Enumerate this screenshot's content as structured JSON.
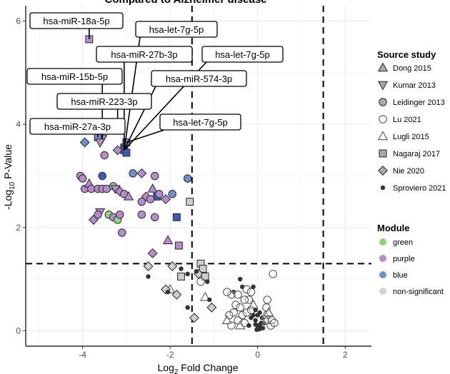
{
  "chart_data": {
    "type": "scatter",
    "title": "Compared to Alzheimer disease",
    "xlabel": "Log2 Fold Change",
    "xlabel_main": "Log",
    "xlabel_sub": "2",
    "xlabel_rest": " Fold Change",
    "ylabel": "-Log10 P-Value",
    "ylabel_main": "-Log",
    "ylabel_sub": "10",
    "ylabel_rest": " P-Value",
    "xlim": [
      -5.3,
      2.6
    ],
    "ylim": [
      -0.3,
      6.3
    ],
    "xticks": [
      -4,
      -2,
      0,
      2
    ],
    "yticks": [
      0,
      2,
      4,
      6
    ],
    "grid": true,
    "thresholds": {
      "x": [
        -1.5,
        1.5
      ],
      "y": [
        1.3
      ]
    },
    "legend_position": "right",
    "legend_shape": {
      "title": "Source study",
      "items": [
        {
          "label": "Dong 2015",
          "shape": "triangle-up"
        },
        {
          "label": "Kumar 2013",
          "shape": "triangle-down"
        },
        {
          "label": "Leidinger 2013",
          "shape": "circle"
        },
        {
          "label": "Lu 2021",
          "shape": "circle-open"
        },
        {
          "label": "Lugli 2015",
          "shape": "triangle-open"
        },
        {
          "label": "Nagaraj 2017",
          "shape": "square"
        },
        {
          "label": "Nie 2020",
          "shape": "diamond"
        },
        {
          "label": "Sproviero 2021",
          "shape": "dot"
        }
      ]
    },
    "legend_color": {
      "title": "Module",
      "items": [
        {
          "label": "green",
          "color": "#90d57c"
        },
        {
          "label": "purple",
          "color": "#b68ccc"
        },
        {
          "label": "blue",
          "color": "#6f8fd0"
        },
        {
          "label": "non-significant",
          "color": "#d3d3d3"
        }
      ]
    },
    "colors": {
      "green": "#90d57c",
      "purple": "#b68ccc",
      "blue": "#6f8fd0",
      "blue_dark": "#3a5bb8",
      "nonsig": "#cfcfcf",
      "dot": "#333333"
    },
    "annotations": [
      {
        "text": "hsa-miR-18a-5p",
        "x": -3.85,
        "y": 5.65
      },
      {
        "text": "hsa-let-7g-5p",
        "x": -3.05,
        "y": 3.5
      },
      {
        "text": "hsa-miR-27b-3p",
        "x": -3.05,
        "y": 3.5
      },
      {
        "text": "hsa-let-7g-5p",
        "x": -3.05,
        "y": 3.5
      },
      {
        "text": "hsa-miR-15b-5p",
        "x": -3.55,
        "y": 3.72
      },
      {
        "text": "hsa-miR-574-3p",
        "x": -3.05,
        "y": 3.5
      },
      {
        "text": "hsa-miR-223-3p",
        "x": -3.2,
        "y": 4.0
      },
      {
        "text": "hsa-let-7g-5p",
        "x": -3.0,
        "y": 3.65
      },
      {
        "text": "hsa-miR-27a-3p",
        "x": -3.65,
        "y": 3.75
      }
    ],
    "points": [
      {
        "x": -3.85,
        "y": 5.65,
        "shape": "square",
        "color": "purple"
      },
      {
        "x": -3.55,
        "y": 3.72,
        "shape": "triangle-down",
        "color": "purple"
      },
      {
        "x": -3.65,
        "y": 3.75,
        "shape": "square",
        "color": "blue"
      },
      {
        "x": -3.95,
        "y": 3.65,
        "shape": "diamond",
        "color": "blue"
      },
      {
        "x": -3.6,
        "y": 3.65,
        "shape": "triangle-down",
        "color": "purple"
      },
      {
        "x": -3.2,
        "y": 4.0,
        "shape": "diamond",
        "color": "purple"
      },
      {
        "x": -3.05,
        "y": 3.55,
        "shape": "square",
        "color": "blue_dark"
      },
      {
        "x": -3.05,
        "y": 3.5,
        "shape": "square",
        "color": "blue_dark"
      },
      {
        "x": -3.0,
        "y": 3.45,
        "shape": "square",
        "color": "blue_dark"
      },
      {
        "x": -3.0,
        "y": 3.65,
        "shape": "square",
        "color": "blue"
      },
      {
        "x": -3.5,
        "y": 3.4,
        "shape": "circle",
        "color": "purple"
      },
      {
        "x": -3.2,
        "y": 3.5,
        "shape": "diamond",
        "color": "purple"
      },
      {
        "x": -4.05,
        "y": 3.0,
        "shape": "circle",
        "color": "purple"
      },
      {
        "x": -4.0,
        "y": 2.95,
        "shape": "circle",
        "color": "purple"
      },
      {
        "x": -3.95,
        "y": 2.75,
        "shape": "circle",
        "color": "purple"
      },
      {
        "x": -3.85,
        "y": 2.85,
        "shape": "triangle-up",
        "color": "purple"
      },
      {
        "x": -3.8,
        "y": 2.75,
        "shape": "circle",
        "color": "purple"
      },
      {
        "x": -3.65,
        "y": 2.75,
        "shape": "circle",
        "color": "purple"
      },
      {
        "x": -3.55,
        "y": 3.0,
        "shape": "circle",
        "color": "blue_dark"
      },
      {
        "x": -3.55,
        "y": 2.75,
        "shape": "circle",
        "color": "purple"
      },
      {
        "x": -3.45,
        "y": 2.75,
        "shape": "circle",
        "color": "purple"
      },
      {
        "x": -3.3,
        "y": 2.8,
        "shape": "circle",
        "color": "green"
      },
      {
        "x": -3.25,
        "y": 2.75,
        "shape": "triangle-down",
        "color": "purple"
      },
      {
        "x": -3.15,
        "y": 2.7,
        "shape": "diamond",
        "color": "purple"
      },
      {
        "x": -3.05,
        "y": 2.65,
        "shape": "circle",
        "color": "purple"
      },
      {
        "x": -2.95,
        "y": 2.6,
        "shape": "triangle-up",
        "color": "purple"
      },
      {
        "x": -2.85,
        "y": 3.05,
        "shape": "circle",
        "color": "blue"
      },
      {
        "x": -2.65,
        "y": 3.05,
        "shape": "diamond",
        "color": "purple"
      },
      {
        "x": -2.55,
        "y": 2.6,
        "shape": "diamond",
        "color": "purple"
      },
      {
        "x": -2.4,
        "y": 2.75,
        "shape": "triangle-up",
        "color": "purple"
      },
      {
        "x": -2.35,
        "y": 3.0,
        "shape": "circle",
        "color": "purple"
      },
      {
        "x": -2.3,
        "y": 2.6,
        "shape": "square",
        "color": "blue_dark"
      },
      {
        "x": -2.45,
        "y": 2.55,
        "shape": "circle",
        "color": "purple"
      },
      {
        "x": -2.25,
        "y": 2.65,
        "shape": "circle",
        "color": "purple"
      },
      {
        "x": -2.65,
        "y": 2.5,
        "shape": "circle",
        "color": "purple"
      },
      {
        "x": -2.1,
        "y": 2.55,
        "shape": "diamond",
        "color": "purple"
      },
      {
        "x": -1.95,
        "y": 2.65,
        "shape": "circle",
        "color": "blue"
      },
      {
        "x": -1.6,
        "y": 2.95,
        "shape": "circle",
        "color": "blue"
      },
      {
        "x": -3.6,
        "y": 2.3,
        "shape": "triangle-down",
        "color": "purple"
      },
      {
        "x": -3.65,
        "y": 2.25,
        "shape": "circle",
        "color": "purple"
      },
      {
        "x": -3.75,
        "y": 2.15,
        "shape": "diamond",
        "color": "purple"
      },
      {
        "x": -3.4,
        "y": 2.25,
        "shape": "circle",
        "color": "green"
      },
      {
        "x": -3.3,
        "y": 2.2,
        "shape": "circle",
        "color": "purple"
      },
      {
        "x": -3.2,
        "y": 2.15,
        "shape": "circle",
        "color": "green"
      },
      {
        "x": -3.15,
        "y": 2.25,
        "shape": "circle",
        "color": "purple"
      },
      {
        "x": -3.1,
        "y": 1.9,
        "shape": "circle",
        "color": "purple"
      },
      {
        "x": -2.65,
        "y": 2.25,
        "shape": "circle",
        "color": "purple"
      },
      {
        "x": -2.35,
        "y": 2.2,
        "shape": "circle",
        "color": "purple"
      },
      {
        "x": -1.85,
        "y": 2.2,
        "shape": "square",
        "color": "blue_dark"
      },
      {
        "x": -1.55,
        "y": 2.5,
        "shape": "square",
        "color": "nonsig"
      },
      {
        "x": -2.05,
        "y": 1.75,
        "shape": "triangle-up",
        "color": "purple"
      },
      {
        "x": -2.4,
        "y": 1.5,
        "shape": "diamond",
        "color": "purple"
      },
      {
        "x": -1.8,
        "y": 1.65,
        "shape": "square",
        "color": "purple"
      },
      {
        "x": -2.5,
        "y": 1.25,
        "shape": "diamond",
        "color": "nonsig"
      },
      {
        "x": -2.5,
        "y": 1.05,
        "shape": "dot",
        "color": "dot"
      },
      {
        "x": -1.95,
        "y": 1.25,
        "shape": "diamond",
        "color": "nonsig"
      },
      {
        "x": -1.75,
        "y": 1.2,
        "shape": "dot",
        "color": "dot"
      },
      {
        "x": -1.6,
        "y": 1.1,
        "shape": "dot",
        "color": "dot"
      },
      {
        "x": -1.3,
        "y": 1.3,
        "shape": "square",
        "color": "nonsig"
      },
      {
        "x": -1.25,
        "y": 1.2,
        "shape": "square",
        "color": "nonsig"
      },
      {
        "x": -1.35,
        "y": 1.1,
        "shape": "diamond",
        "color": "nonsig"
      },
      {
        "x": -1.2,
        "y": 1.05,
        "shape": "square",
        "color": "nonsig"
      },
      {
        "x": -1.4,
        "y": 1.15,
        "shape": "dot",
        "color": "dot"
      },
      {
        "x": -1.75,
        "y": 1.05,
        "shape": "square",
        "color": "nonsig"
      },
      {
        "x": -1.3,
        "y": 0.95,
        "shape": "circle-open",
        "color": "nonsig"
      },
      {
        "x": -1.15,
        "y": 0.95,
        "shape": "dot",
        "color": "dot"
      },
      {
        "x": -2.0,
        "y": 0.8,
        "shape": "triangle-open",
        "color": "nonsig"
      },
      {
        "x": -2.1,
        "y": 0.8,
        "shape": "diamond",
        "color": "nonsig"
      },
      {
        "x": -2.05,
        "y": 0.75,
        "shape": "dot",
        "color": "dot"
      },
      {
        "x": -1.85,
        "y": 0.7,
        "shape": "diamond",
        "color": "nonsig"
      },
      {
        "x": -1.6,
        "y": 0.45,
        "shape": "dot",
        "color": "dot"
      },
      {
        "x": -1.2,
        "y": 0.65,
        "shape": "triangle-open",
        "color": "nonsig"
      },
      {
        "x": -1.1,
        "y": 0.6,
        "shape": "dot",
        "color": "dot"
      },
      {
        "x": -1.05,
        "y": 0.45,
        "shape": "diamond",
        "color": "nonsig"
      },
      {
        "x": -1.45,
        "y": 0.25,
        "shape": "diamond",
        "color": "nonsig"
      },
      {
        "x": -0.55,
        "y": 0.75,
        "shape": "dot",
        "color": "dot"
      },
      {
        "x": -0.4,
        "y": 1.0,
        "shape": "dot",
        "color": "dot"
      },
      {
        "x": -0.35,
        "y": 0.85,
        "shape": "dot",
        "color": "dot"
      },
      {
        "x": -0.25,
        "y": 0.8,
        "shape": "circle-open",
        "color": "nonsig"
      },
      {
        "x": -0.15,
        "y": 0.75,
        "shape": "circle-open",
        "color": "nonsig"
      },
      {
        "x": -0.2,
        "y": 0.6,
        "shape": "circle-open",
        "color": "nonsig"
      },
      {
        "x": -0.3,
        "y": 0.6,
        "shape": "circle-open",
        "color": "nonsig"
      },
      {
        "x": -0.1,
        "y": 0.85,
        "shape": "dot",
        "color": "dot"
      },
      {
        "x": -0.6,
        "y": 0.7,
        "shape": "circle-open",
        "color": "nonsig"
      },
      {
        "x": -0.7,
        "y": 0.75,
        "shape": "circle-open",
        "color": "nonsig"
      },
      {
        "x": -0.45,
        "y": 0.7,
        "shape": "circle-open",
        "color": "nonsig"
      },
      {
        "x": -0.5,
        "y": 0.5,
        "shape": "circle-open",
        "color": "nonsig"
      },
      {
        "x": -0.4,
        "y": 0.45,
        "shape": "circle-open",
        "color": "nonsig"
      },
      {
        "x": -0.55,
        "y": 0.35,
        "shape": "circle-open",
        "color": "nonsig"
      },
      {
        "x": -0.65,
        "y": 0.3,
        "shape": "circle-open",
        "color": "nonsig"
      },
      {
        "x": -0.35,
        "y": 0.3,
        "shape": "circle-open",
        "color": "nonsig"
      },
      {
        "x": -0.25,
        "y": 0.35,
        "shape": "circle-open",
        "color": "nonsig"
      },
      {
        "x": -0.15,
        "y": 0.4,
        "shape": "circle-open",
        "color": "nonsig"
      },
      {
        "x": -0.7,
        "y": 0.2,
        "shape": "triangle-open",
        "color": "nonsig"
      },
      {
        "x": -0.45,
        "y": 0.2,
        "shape": "circle-open",
        "color": "nonsig"
      },
      {
        "x": -0.3,
        "y": 0.15,
        "shape": "circle-open",
        "color": "nonsig"
      },
      {
        "x": -0.6,
        "y": 0.1,
        "shape": "circle-open",
        "color": "nonsig"
      },
      {
        "x": -0.4,
        "y": 0.1,
        "shape": "triangle-open",
        "color": "nonsig"
      },
      {
        "x": -0.2,
        "y": 0.1,
        "shape": "dot",
        "color": "dot"
      },
      {
        "x": -0.15,
        "y": 0.25,
        "shape": "dot",
        "color": "dot"
      },
      {
        "x": -0.1,
        "y": 0.3,
        "shape": "dot",
        "color": "dot"
      },
      {
        "x": -0.05,
        "y": 0.2,
        "shape": "dot",
        "color": "dot"
      },
      {
        "x": -0.05,
        "y": 0.12,
        "shape": "dot",
        "color": "dot"
      },
      {
        "x": 0.0,
        "y": 0.05,
        "shape": "dot",
        "color": "dot"
      },
      {
        "x": 0.02,
        "y": 0.1,
        "shape": "dot",
        "color": "dot"
      },
      {
        "x": 0.04,
        "y": 0.03,
        "shape": "dot",
        "color": "dot"
      },
      {
        "x": -0.02,
        "y": 0.02,
        "shape": "dot",
        "color": "dot"
      },
      {
        "x": 0.06,
        "y": 0.08,
        "shape": "dot",
        "color": "dot"
      },
      {
        "x": 0.08,
        "y": 0.15,
        "shape": "dot",
        "color": "dot"
      },
      {
        "x": 0.1,
        "y": 0.25,
        "shape": "dot",
        "color": "dot"
      },
      {
        "x": 0.12,
        "y": 0.05,
        "shape": "dot",
        "color": "dot"
      },
      {
        "x": 0.15,
        "y": 0.15,
        "shape": "dot",
        "color": "dot"
      },
      {
        "x": 0.18,
        "y": 0.3,
        "shape": "triangle-open",
        "color": "nonsig"
      },
      {
        "x": 0.2,
        "y": 0.45,
        "shape": "circle-open",
        "color": "nonsig"
      },
      {
        "x": 0.22,
        "y": 0.6,
        "shape": "circle-open",
        "color": "nonsig"
      },
      {
        "x": 0.2,
        "y": 0.2,
        "shape": "triangle-open",
        "color": "nonsig"
      },
      {
        "x": 0.25,
        "y": 0.35,
        "shape": "triangle-open",
        "color": "nonsig"
      },
      {
        "x": 0.3,
        "y": 0.1,
        "shape": "circle-open",
        "color": "nonsig"
      },
      {
        "x": 0.32,
        "y": 0.2,
        "shape": "circle-open",
        "color": "nonsig"
      },
      {
        "x": 0.38,
        "y": 0.15,
        "shape": "circle-open",
        "color": "nonsig"
      },
      {
        "x": 0.35,
        "y": 1.1,
        "shape": "circle-open",
        "color": "nonsig"
      },
      {
        "x": -0.1,
        "y": 0.5,
        "shape": "triangle-open",
        "color": "nonsig"
      },
      {
        "x": -0.05,
        "y": 0.4,
        "shape": "dot",
        "color": "dot"
      },
      {
        "x": 0.0,
        "y": 0.3,
        "shape": "dot",
        "color": "dot"
      },
      {
        "x": 0.05,
        "y": 0.35,
        "shape": "dot",
        "color": "dot"
      }
    ]
  }
}
